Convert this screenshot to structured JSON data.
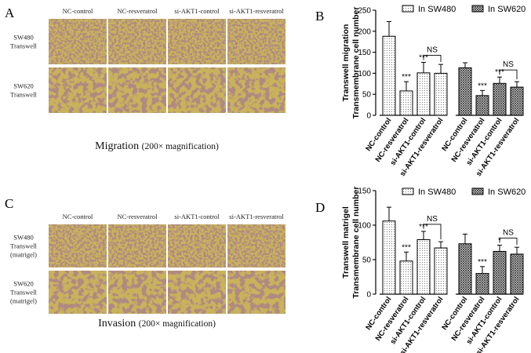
{
  "panels": {
    "A": {
      "letter": "A",
      "columns": [
        "NC-control",
        "NC-resveratrol",
        "si-AKT1-control",
        "si-AKT1-resveratrol"
      ],
      "rows": [
        {
          "label": [
            "SW480",
            "Transwell"
          ],
          "tone": "dense"
        },
        {
          "label": [
            "SW620",
            "Transwell"
          ],
          "tone": "coarse"
        }
      ],
      "caption_main": "Migration",
      "caption_sub": "(200× magnification)"
    },
    "C": {
      "letter": "C",
      "columns": [
        "NC-control",
        "NC-resveratrol",
        "si-AKT1-control",
        "si-AKT1-resveratrol"
      ],
      "rows": [
        {
          "label": [
            "SW480",
            "Transwell",
            "(matrigel)"
          ],
          "tone": "dense"
        },
        {
          "label": [
            "SW620",
            "Transwell",
            "(matrigel)"
          ],
          "tone": "coarse"
        }
      ],
      "caption_main": "Invasion",
      "caption_sub": "(200× magnification)"
    }
  },
  "colors": {
    "micrograph_bg": "#c9b35a",
    "cell_stain": "#6e3f3c",
    "bar_fill": "#ffffff",
    "bar_stroke": "#000000"
  },
  "chart_data": [
    {
      "panel": "B",
      "type": "bar",
      "ylabel": [
        "Transwell migration",
        "Transmembrane cell number"
      ],
      "ylim": [
        0,
        250
      ],
      "yticks": [
        0,
        50,
        100,
        150,
        200,
        250
      ],
      "categories": [
        "NC-control",
        "NC-resveratrol",
        "si-AKT1-control",
        "si-AKT1-resveratrol"
      ],
      "series": [
        {
          "name": "In SW480",
          "pattern": "dots",
          "values": [
            188,
            58,
            101,
            100
          ],
          "errors": [
            35,
            22,
            25,
            21
          ]
        },
        {
          "name": "In SW620",
          "pattern": "crosshatch",
          "values": [
            113,
            47,
            76,
            67
          ],
          "errors": [
            12,
            12,
            15,
            13
          ]
        }
      ],
      "annotations": [
        {
          "series": 0,
          "bar": 1,
          "text": "***"
        },
        {
          "series": 0,
          "bar": 2,
          "text": "***"
        },
        {
          "series": 0,
          "bracket": [
            2,
            3
          ],
          "text": "NS"
        },
        {
          "series": 1,
          "bar": 1,
          "text": "***"
        },
        {
          "series": 1,
          "bar": 2,
          "text": "***"
        },
        {
          "series": 1,
          "bracket": [
            2,
            3
          ],
          "text": "NS"
        }
      ],
      "legend_position": "top"
    },
    {
      "panel": "D",
      "type": "bar",
      "ylabel": [
        "Transwell matrigel",
        "Transmembrane cell number"
      ],
      "ylim": [
        0,
        150
      ],
      "yticks": [
        0,
        50,
        100,
        150
      ],
      "categories": [
        "NC-control",
        "NC-resveratrol",
        "si-AKT1-control",
        "si-AKT1-resveratrol"
      ],
      "series": [
        {
          "name": "In SW480",
          "pattern": "dots",
          "values": [
            106,
            48,
            79,
            67
          ],
          "errors": [
            20,
            13,
            12,
            9
          ]
        },
        {
          "name": "In SW620",
          "pattern": "crosshatch",
          "values": [
            73,
            30,
            62,
            58
          ],
          "errors": [
            14,
            10,
            9,
            10
          ]
        }
      ],
      "annotations": [
        {
          "series": 0,
          "bar": 1,
          "text": "***"
        },
        {
          "series": 0,
          "bar": 2,
          "text": "***"
        },
        {
          "series": 0,
          "bracket": [
            2,
            3
          ],
          "text": "NS"
        },
        {
          "series": 1,
          "bar": 1,
          "text": "***"
        },
        {
          "series": 1,
          "bar": 2,
          "text": "*"
        },
        {
          "series": 1,
          "bracket": [
            2,
            3
          ],
          "text": "NS"
        }
      ],
      "legend_position": "top"
    }
  ],
  "chart_letters": [
    "B",
    "D"
  ]
}
